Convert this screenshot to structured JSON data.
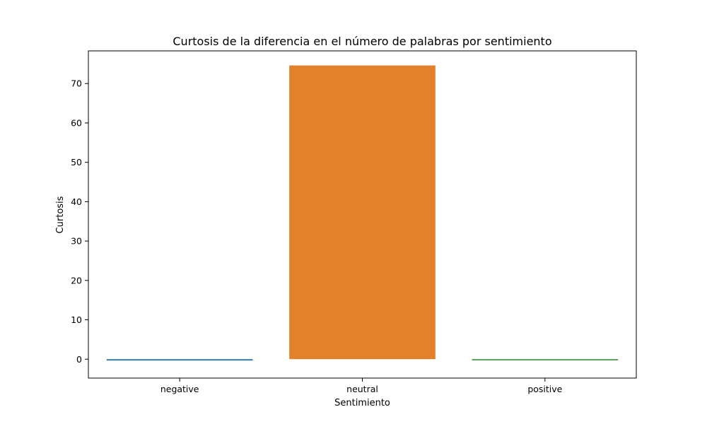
{
  "chart_data": {
    "type": "bar",
    "title": "Curtosis de la diferencia en el número de palabras por sentimiento",
    "xlabel": "Sentimiento",
    "ylabel": "Curtosis",
    "categories": [
      "negative",
      "neutral",
      "positive"
    ],
    "values": [
      -0.35,
      74.6,
      -0.3
    ],
    "colors": [
      "#1f77b4",
      "#ff7f0e",
      "#2ca02c"
    ],
    "bar_saturation": 0.75,
    "ylim": [
      -4.8,
      78.3
    ],
    "yticks": [
      0,
      10,
      20,
      30,
      40,
      50,
      60,
      70
    ],
    "grid": false,
    "legend": "none"
  }
}
